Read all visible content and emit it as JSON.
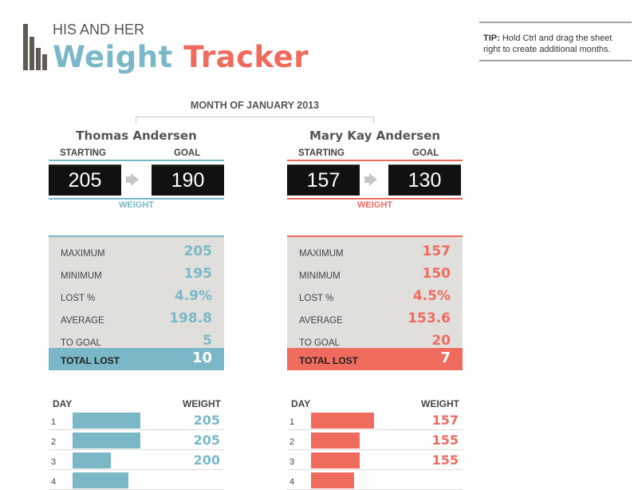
{
  "header": {
    "subtitle": "HIS AND HER",
    "title_word1": "Weight",
    "title_word2": "Tracker"
  },
  "tip": {
    "label": "TIP:",
    "text": "Hold Ctrl and drag the sheet right to create additional months."
  },
  "month_label": "MONTH OF JANUARY 2013",
  "colors": {
    "his": "#7ab8c8",
    "her": "#ef6b5e",
    "stats_bg": "#e1dfdc",
    "dark_box": "#111111"
  },
  "labels": {
    "starting": "STARTING",
    "goal": "GOAL",
    "weight": "WEIGHT",
    "maximum": "MAXIMUM",
    "minimum": "MINIMUM",
    "lost_pct": "LOST %",
    "average": "AVERAGE",
    "to_goal": "TO GOAL",
    "total_lost": "TOTAL LOST",
    "day": "DAY",
    "weight_col": "WEIGHT"
  },
  "his": {
    "name": "Thomas Andersen",
    "starting": "205",
    "goal": "190",
    "maximum": "205",
    "minimum": "195",
    "lost_pct": "4.9%",
    "average": "198.8",
    "to_goal": "5",
    "total_lost": "10",
    "days": [
      {
        "day": "1",
        "weight": "205",
        "bar_fraction": 0.74
      },
      {
        "day": "2",
        "weight": "205",
        "bar_fraction": 0.74
      },
      {
        "day": "3",
        "weight": "200",
        "bar_fraction": 0.42
      },
      {
        "day": "4",
        "weight": "",
        "bar_fraction": 0.61
      }
    ]
  },
  "her": {
    "name": "Mary Kay Andersen",
    "starting": "157",
    "goal": "130",
    "maximum": "157",
    "minimum": "150",
    "lost_pct": "4.5%",
    "average": "153.6",
    "to_goal": "20",
    "total_lost": "7",
    "days": [
      {
        "day": "1",
        "weight": "157",
        "bar_fraction": 0.69
      },
      {
        "day": "2",
        "weight": "155",
        "bar_fraction": 0.53
      },
      {
        "day": "3",
        "weight": "155",
        "bar_fraction": 0.53
      },
      {
        "day": "4",
        "weight": "",
        "bar_fraction": 0.47
      }
    ]
  }
}
